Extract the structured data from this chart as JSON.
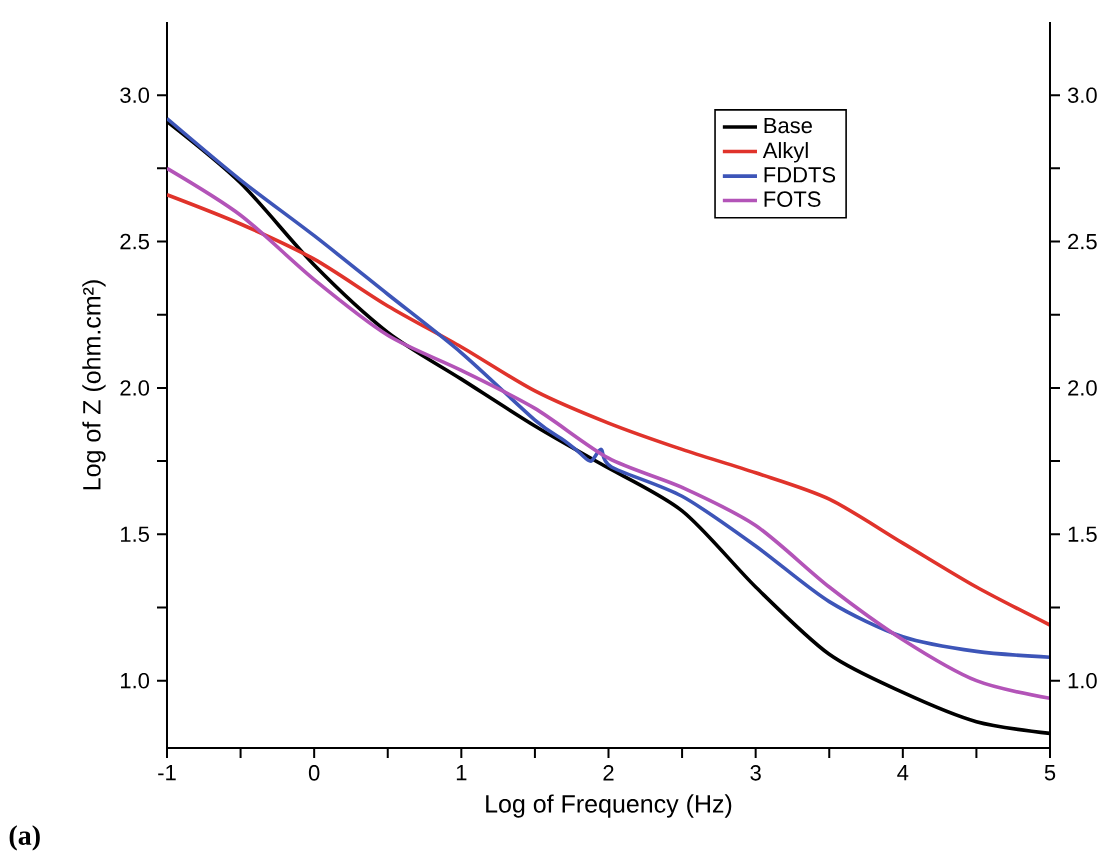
{
  "chart_data": {
    "type": "line",
    "xlabel": "Log of Frequency (Hz)",
    "ylabel": "Log of Z (ohm.cm²)",
    "annotations": [
      "(a)"
    ],
    "xlim": [
      -1,
      5
    ],
    "ylim": [
      0.77,
      3.25
    ],
    "y2lim": [
      0.77,
      3.25
    ],
    "xticks": [
      -1,
      {
        "value": -0.5,
        "label": null
      },
      0,
      {
        "value": 0.5,
        "label": null
      },
      1,
      {
        "value": 1.5,
        "label": null
      },
      2,
      {
        "value": 2.5,
        "label": null
      },
      3,
      {
        "value": 3.5,
        "label": null
      },
      4,
      {
        "value": 4.5,
        "label": null
      },
      5
    ],
    "yticks": [
      {
        "value": 1,
        "label": "1.0"
      },
      {
        "value": 1.25,
        "label": null
      },
      {
        "value": 1.5,
        "label": "1.5"
      },
      {
        "value": 1.75,
        "label": null
      },
      {
        "value": 2,
        "label": "2.0"
      },
      {
        "value": 2.25,
        "label": null
      },
      {
        "value": 2.5,
        "label": "2.5"
      },
      {
        "value": 2.75,
        "label": null
      },
      {
        "value": 3,
        "label": "3.0"
      }
    ],
    "y2ticks": [
      {
        "value": 1,
        "label": "1.0"
      },
      {
        "value": 1.25,
        "label": null
      },
      {
        "value": 1.5,
        "label": "1.5"
      },
      {
        "value": 1.75,
        "label": null
      },
      {
        "value": 2,
        "label": "2.0"
      },
      {
        "value": 2.25,
        "label": null
      },
      {
        "value": 2.5,
        "label": "2.5"
      },
      {
        "value": 2.75,
        "label": null
      },
      {
        "value": 3,
        "label": "3.0"
      }
    ],
    "grid": false,
    "legend": "top right",
    "marker": "none",
    "line_style": "solid",
    "series": [
      {
        "name": "Base",
        "color": "#000000",
        "x": [
          -1,
          -0.5,
          0,
          0.5,
          1,
          1.5,
          1.95,
          2.5,
          3,
          3.5,
          4,
          4.5,
          5
        ],
        "values": [
          2.91,
          2.7,
          2.42,
          2.19,
          2.03,
          1.87,
          1.74,
          1.58,
          1.32,
          1.09,
          0.96,
          0.86,
          0.82
        ]
      },
      {
        "name": "Alkyl",
        "color": "#e0332b",
        "x": [
          -1,
          -0.5,
          0,
          0.5,
          1,
          1.5,
          2,
          2.5,
          3,
          3.5,
          4,
          4.5,
          5
        ],
        "values": [
          2.66,
          2.56,
          2.44,
          2.28,
          2.14,
          1.99,
          1.88,
          1.79,
          1.71,
          1.62,
          1.47,
          1.32,
          1.19
        ]
      },
      {
        "name": "FDDTS",
        "color": "#3d55b8",
        "x": [
          -1,
          -0.5,
          0,
          0.5,
          1,
          1.5,
          1.7,
          1.8,
          1.88,
          1.95,
          2.02,
          2.5,
          3,
          3.5,
          4,
          4.5,
          5
        ],
        "values": [
          2.92,
          2.71,
          2.52,
          2.32,
          2.12,
          1.89,
          1.82,
          1.78,
          1.75,
          1.79,
          1.73,
          1.63,
          1.46,
          1.27,
          1.15,
          1.1,
          1.08
        ]
      },
      {
        "name": "FOTS",
        "color": "#b354b8",
        "x": [
          -1,
          -0.5,
          0,
          0.5,
          1,
          1.5,
          2,
          2.5,
          3,
          3.5,
          4,
          4.5,
          5
        ],
        "values": [
          2.75,
          2.59,
          2.37,
          2.18,
          2.06,
          1.93,
          1.76,
          1.66,
          1.53,
          1.32,
          1.14,
          1.0,
          0.94
        ]
      }
    ]
  }
}
